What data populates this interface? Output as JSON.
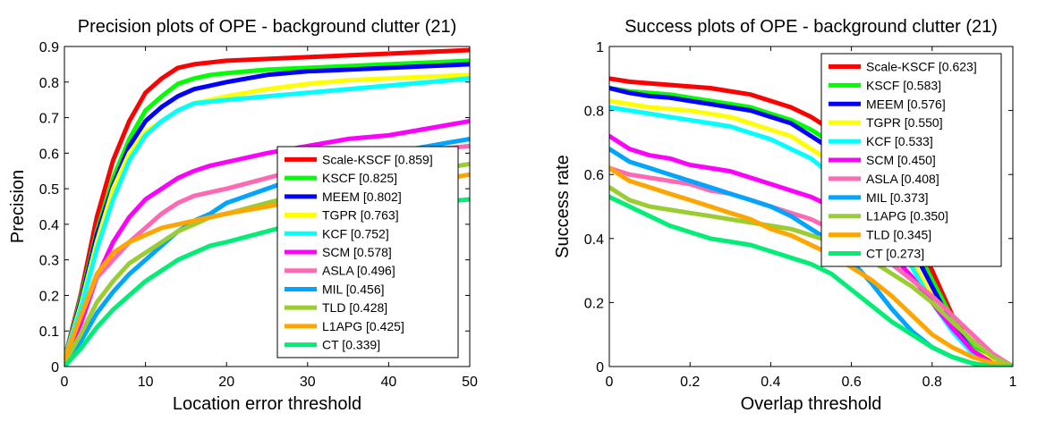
{
  "chart_data": [
    {
      "type": "line",
      "title": "Precision plots of OPE - background clutter (21)",
      "xlabel": "Location error threshold",
      "ylabel": "Precision",
      "xlim": [
        0,
        50
      ],
      "ylim": [
        0,
        0.9
      ],
      "xticks": [
        "0",
        "10",
        "20",
        "30",
        "40",
        "50"
      ],
      "yticks": [
        "0",
        "0.1",
        "0.2",
        "0.3",
        "0.4",
        "0.5",
        "0.6",
        "0.7",
        "0.8",
        "0.9"
      ],
      "legend_position": "bottom-right",
      "series": [
        {
          "name": "Scale-KSCF [0.859]",
          "color": "#ff0000",
          "x": [
            0,
            2,
            4,
            6,
            8,
            10,
            12,
            14,
            16,
            18,
            20,
            25,
            30,
            35,
            40,
            45,
            50
          ],
          "y": [
            0.02,
            0.2,
            0.42,
            0.58,
            0.69,
            0.77,
            0.81,
            0.84,
            0.85,
            0.855,
            0.86,
            0.865,
            0.87,
            0.875,
            0.88,
            0.885,
            0.89
          ]
        },
        {
          "name": "KSCF [0.825]",
          "color": "#00ff00",
          "x": [
            0,
            2,
            4,
            6,
            8,
            10,
            12,
            14,
            16,
            18,
            20,
            25,
            30,
            35,
            40,
            45,
            50
          ],
          "y": [
            0.02,
            0.19,
            0.38,
            0.53,
            0.64,
            0.72,
            0.76,
            0.795,
            0.81,
            0.82,
            0.825,
            0.835,
            0.84,
            0.845,
            0.85,
            0.855,
            0.86
          ]
        },
        {
          "name": "MEEM [0.802]",
          "color": "#0000ff",
          "x": [
            0,
            2,
            4,
            6,
            8,
            10,
            12,
            14,
            16,
            18,
            20,
            25,
            30,
            35,
            40,
            45,
            50
          ],
          "y": [
            0.02,
            0.18,
            0.37,
            0.51,
            0.62,
            0.69,
            0.73,
            0.76,
            0.78,
            0.79,
            0.8,
            0.82,
            0.83,
            0.835,
            0.84,
            0.845,
            0.85
          ]
        },
        {
          "name": "TGPR [0.763]",
          "color": "#ffff00",
          "x": [
            0,
            2,
            4,
            6,
            8,
            10,
            12,
            14,
            16,
            18,
            20,
            25,
            30,
            35,
            40,
            45,
            50
          ],
          "y": [
            0.02,
            0.17,
            0.35,
            0.5,
            0.6,
            0.66,
            0.69,
            0.72,
            0.74,
            0.75,
            0.76,
            0.78,
            0.795,
            0.805,
            0.81,
            0.815,
            0.82
          ]
        },
        {
          "name": "KCF [0.752]",
          "color": "#00ffff",
          "x": [
            0,
            2,
            4,
            6,
            8,
            10,
            12,
            14,
            16,
            18,
            20,
            25,
            30,
            35,
            40,
            45,
            50
          ],
          "y": [
            0.02,
            0.16,
            0.33,
            0.47,
            0.58,
            0.65,
            0.69,
            0.72,
            0.74,
            0.745,
            0.75,
            0.76,
            0.77,
            0.78,
            0.79,
            0.8,
            0.81
          ]
        },
        {
          "name": "SCM [0.578]",
          "color": "#ff00ff",
          "x": [
            0,
            2,
            4,
            6,
            8,
            10,
            12,
            14,
            16,
            18,
            20,
            25,
            30,
            35,
            40,
            45,
            50
          ],
          "y": [
            0.02,
            0.12,
            0.25,
            0.35,
            0.42,
            0.47,
            0.5,
            0.53,
            0.55,
            0.565,
            0.575,
            0.6,
            0.62,
            0.64,
            0.65,
            0.67,
            0.69
          ]
        },
        {
          "name": "ASLA [0.496]",
          "color": "#ff69b4",
          "x": [
            0,
            2,
            4,
            6,
            8,
            10,
            12,
            14,
            16,
            18,
            20,
            25,
            30,
            35,
            40,
            45,
            50
          ],
          "y": [
            0.02,
            0.14,
            0.25,
            0.3,
            0.35,
            0.39,
            0.43,
            0.46,
            0.48,
            0.49,
            0.5,
            0.53,
            0.56,
            0.58,
            0.6,
            0.61,
            0.62
          ]
        },
        {
          "name": "MIL [0.456]",
          "color": "#00a5ff",
          "x": [
            0,
            2,
            4,
            6,
            8,
            10,
            12,
            14,
            16,
            18,
            20,
            25,
            30,
            35,
            40,
            45,
            50
          ],
          "y": [
            0.01,
            0.07,
            0.15,
            0.21,
            0.26,
            0.3,
            0.34,
            0.38,
            0.41,
            0.43,
            0.46,
            0.5,
            0.54,
            0.57,
            0.6,
            0.62,
            0.64
          ]
        },
        {
          "name": "TLD [0.428]",
          "color": "#9acd32",
          "x": [
            0,
            2,
            4,
            6,
            8,
            10,
            12,
            14,
            16,
            18,
            20,
            25,
            30,
            35,
            40,
            45,
            50
          ],
          "y": [
            0.01,
            0.09,
            0.18,
            0.24,
            0.29,
            0.32,
            0.35,
            0.38,
            0.4,
            0.42,
            0.43,
            0.46,
            0.49,
            0.51,
            0.53,
            0.55,
            0.57
          ]
        },
        {
          "name": "L1APG [0.425]",
          "color": "#ffa500",
          "x": [
            0,
            2,
            4,
            6,
            8,
            10,
            12,
            14,
            16,
            18,
            20,
            25,
            30,
            35,
            40,
            45,
            50
          ],
          "y": [
            0.02,
            0.14,
            0.26,
            0.32,
            0.35,
            0.37,
            0.39,
            0.4,
            0.41,
            0.42,
            0.43,
            0.45,
            0.47,
            0.49,
            0.5,
            0.52,
            0.54
          ]
        },
        {
          "name": "CT [0.339]",
          "color": "#00ee76",
          "x": [
            0,
            2,
            4,
            6,
            8,
            10,
            12,
            14,
            16,
            18,
            20,
            25,
            30,
            35,
            40,
            45,
            50
          ],
          "y": [
            0.0,
            0.05,
            0.11,
            0.16,
            0.2,
            0.24,
            0.27,
            0.3,
            0.32,
            0.34,
            0.35,
            0.38,
            0.41,
            0.43,
            0.45,
            0.46,
            0.47
          ]
        }
      ]
    },
    {
      "type": "line",
      "title": "Success plots of OPE - background clutter (21)",
      "xlabel": "Overlap threshold",
      "ylabel": "Success rate",
      "xlim": [
        0,
        1
      ],
      "ylim": [
        0,
        1
      ],
      "xticks": [
        "0",
        "0.2",
        "0.4",
        "0.6",
        "0.8",
        "1"
      ],
      "yticks": [
        "0",
        "0.2",
        "0.4",
        "0.6",
        "0.8",
        "1"
      ],
      "legend_position": "top-right",
      "series": [
        {
          "name": "Scale-KSCF [0.623]",
          "color": "#ff0000",
          "x": [
            0,
            0.05,
            0.1,
            0.15,
            0.2,
            0.25,
            0.3,
            0.35,
            0.4,
            0.45,
            0.5,
            0.55,
            0.6,
            0.65,
            0.7,
            0.75,
            0.8,
            0.85,
            0.9,
            0.95,
            1
          ],
          "y": [
            0.9,
            0.89,
            0.885,
            0.88,
            0.875,
            0.87,
            0.86,
            0.85,
            0.83,
            0.81,
            0.78,
            0.74,
            0.69,
            0.62,
            0.53,
            0.43,
            0.3,
            0.16,
            0.06,
            0.02,
            0.0
          ]
        },
        {
          "name": "KSCF [0.583]",
          "color": "#00ff00",
          "x": [
            0,
            0.05,
            0.1,
            0.15,
            0.2,
            0.25,
            0.3,
            0.35,
            0.4,
            0.45,
            0.5,
            0.55,
            0.6,
            0.65,
            0.7,
            0.75,
            0.8,
            0.85,
            0.9,
            0.95,
            1
          ],
          "y": [
            0.87,
            0.86,
            0.855,
            0.85,
            0.84,
            0.83,
            0.82,
            0.81,
            0.79,
            0.77,
            0.74,
            0.7,
            0.64,
            0.57,
            0.49,
            0.39,
            0.27,
            0.15,
            0.06,
            0.02,
            0.0
          ]
        },
        {
          "name": "MEEM [0.576]",
          "color": "#0000ff",
          "x": [
            0,
            0.05,
            0.1,
            0.15,
            0.2,
            0.25,
            0.3,
            0.35,
            0.4,
            0.45,
            0.5,
            0.55,
            0.6,
            0.65,
            0.7,
            0.75,
            0.8,
            0.85,
            0.9,
            0.95,
            1
          ],
          "y": [
            0.87,
            0.855,
            0.845,
            0.84,
            0.83,
            0.82,
            0.81,
            0.8,
            0.78,
            0.76,
            0.72,
            0.68,
            0.62,
            0.55,
            0.47,
            0.37,
            0.25,
            0.13,
            0.05,
            0.02,
            0.0
          ]
        },
        {
          "name": "TGPR [0.550]",
          "color": "#ffff00",
          "x": [
            0,
            0.05,
            0.1,
            0.15,
            0.2,
            0.25,
            0.3,
            0.35,
            0.4,
            0.45,
            0.5,
            0.55,
            0.6,
            0.65,
            0.7,
            0.75,
            0.8,
            0.85,
            0.9,
            0.95,
            1
          ],
          "y": [
            0.83,
            0.82,
            0.81,
            0.805,
            0.8,
            0.79,
            0.78,
            0.76,
            0.74,
            0.72,
            0.68,
            0.64,
            0.58,
            0.51,
            0.42,
            0.33,
            0.22,
            0.12,
            0.05,
            0.02,
            0.0
          ]
        },
        {
          "name": "KCF [0.533]",
          "color": "#00ffff",
          "x": [
            0,
            0.05,
            0.1,
            0.15,
            0.2,
            0.25,
            0.3,
            0.35,
            0.4,
            0.45,
            0.5,
            0.55,
            0.6,
            0.65,
            0.7,
            0.75,
            0.8,
            0.85,
            0.9,
            0.95,
            1
          ],
          "y": [
            0.81,
            0.8,
            0.79,
            0.78,
            0.77,
            0.76,
            0.75,
            0.73,
            0.71,
            0.68,
            0.65,
            0.6,
            0.55,
            0.48,
            0.4,
            0.31,
            0.2,
            0.11,
            0.04,
            0.01,
            0.0
          ]
        },
        {
          "name": "SCM [0.450]",
          "color": "#ff00ff",
          "x": [
            0,
            0.05,
            0.1,
            0.15,
            0.2,
            0.25,
            0.3,
            0.35,
            0.4,
            0.45,
            0.5,
            0.55,
            0.6,
            0.65,
            0.7,
            0.75,
            0.8,
            0.85,
            0.9,
            0.95,
            1
          ],
          "y": [
            0.72,
            0.68,
            0.66,
            0.65,
            0.63,
            0.62,
            0.61,
            0.59,
            0.57,
            0.55,
            0.53,
            0.5,
            0.46,
            0.41,
            0.35,
            0.28,
            0.2,
            0.12,
            0.05,
            0.01,
            0.0
          ]
        },
        {
          "name": "ASLA [0.408]",
          "color": "#ff69b4",
          "x": [
            0,
            0.05,
            0.1,
            0.15,
            0.2,
            0.25,
            0.3,
            0.35,
            0.4,
            0.45,
            0.5,
            0.55,
            0.6,
            0.65,
            0.7,
            0.75,
            0.8,
            0.85,
            0.9,
            0.95,
            1
          ],
          "y": [
            0.62,
            0.6,
            0.59,
            0.58,
            0.57,
            0.55,
            0.54,
            0.52,
            0.5,
            0.48,
            0.46,
            0.43,
            0.4,
            0.36,
            0.32,
            0.27,
            0.22,
            0.16,
            0.1,
            0.04,
            0.0
          ]
        },
        {
          "name": "MIL [0.373]",
          "color": "#00a5ff",
          "x": [
            0,
            0.05,
            0.1,
            0.15,
            0.2,
            0.25,
            0.3,
            0.35,
            0.4,
            0.45,
            0.5,
            0.55,
            0.6,
            0.65,
            0.7,
            0.75,
            0.8,
            0.85,
            0.9,
            0.95,
            1
          ],
          "y": [
            0.68,
            0.64,
            0.62,
            0.6,
            0.58,
            0.56,
            0.54,
            0.52,
            0.5,
            0.47,
            0.43,
            0.39,
            0.33,
            0.26,
            0.18,
            0.11,
            0.06,
            0.03,
            0.01,
            0.0,
            0.0
          ]
        },
        {
          "name": "L1APG [0.350]",
          "color": "#9acd32",
          "x": [
            0,
            0.05,
            0.1,
            0.15,
            0.2,
            0.25,
            0.3,
            0.35,
            0.4,
            0.45,
            0.5,
            0.55,
            0.6,
            0.65,
            0.7,
            0.75,
            0.8,
            0.85,
            0.9,
            0.95,
            1
          ],
          "y": [
            0.56,
            0.52,
            0.5,
            0.49,
            0.48,
            0.47,
            0.46,
            0.45,
            0.44,
            0.43,
            0.41,
            0.39,
            0.36,
            0.33,
            0.29,
            0.25,
            0.2,
            0.14,
            0.08,
            0.03,
            0.0
          ]
        },
        {
          "name": "TLD [0.345]",
          "color": "#ffa500",
          "x": [
            0,
            0.05,
            0.1,
            0.15,
            0.2,
            0.25,
            0.3,
            0.35,
            0.4,
            0.45,
            0.5,
            0.55,
            0.6,
            0.65,
            0.7,
            0.75,
            0.8,
            0.85,
            0.9,
            0.95,
            1
          ],
          "y": [
            0.62,
            0.58,
            0.56,
            0.54,
            0.52,
            0.5,
            0.48,
            0.46,
            0.43,
            0.41,
            0.38,
            0.35,
            0.31,
            0.27,
            0.22,
            0.16,
            0.1,
            0.06,
            0.03,
            0.01,
            0.0
          ]
        },
        {
          "name": "CT [0.273]",
          "color": "#00ee76",
          "x": [
            0,
            0.05,
            0.1,
            0.15,
            0.2,
            0.25,
            0.3,
            0.35,
            0.4,
            0.45,
            0.5,
            0.55,
            0.6,
            0.65,
            0.7,
            0.75,
            0.8,
            0.85,
            0.9,
            0.95,
            1
          ],
          "y": [
            0.53,
            0.5,
            0.47,
            0.44,
            0.42,
            0.4,
            0.39,
            0.38,
            0.36,
            0.34,
            0.32,
            0.29,
            0.24,
            0.19,
            0.14,
            0.1,
            0.06,
            0.03,
            0.01,
            0.0,
            0.0
          ]
        }
      ]
    }
  ]
}
